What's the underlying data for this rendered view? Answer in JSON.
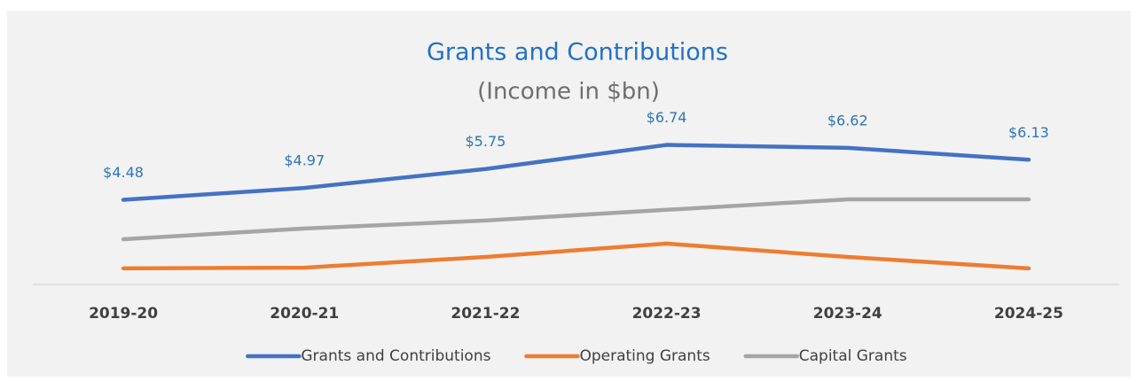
{
  "chart_data": {
    "type": "line",
    "title": "Grants and Contributions",
    "subtitle": "(Income in $bn)",
    "categories": [
      "2019-20",
      "2020-21",
      "2021-22",
      "2022-23",
      "2023-24",
      "2024-25"
    ],
    "ylim": [
      1,
      8
    ],
    "legend": "bottom",
    "series": [
      {
        "name": "Grants and Contributions",
        "color": "#4472c4",
        "values": [
          4.48,
          4.97,
          5.75,
          6.74,
          6.62,
          6.13
        ],
        "value_labels": [
          "$4.48",
          "$4.97",
          "$5.75",
          "$6.74",
          "$6.62",
          "$6.13"
        ]
      },
      {
        "name": "Operating Grants",
        "color": "#ed7d31",
        "values": [
          1.66,
          1.69,
          2.13,
          2.68,
          2.13,
          1.66
        ]
      },
      {
        "name": "Capital Grants",
        "color": "#a5a5a5",
        "values": [
          2.86,
          3.3,
          3.63,
          4.07,
          4.5,
          4.5
        ]
      }
    ]
  }
}
